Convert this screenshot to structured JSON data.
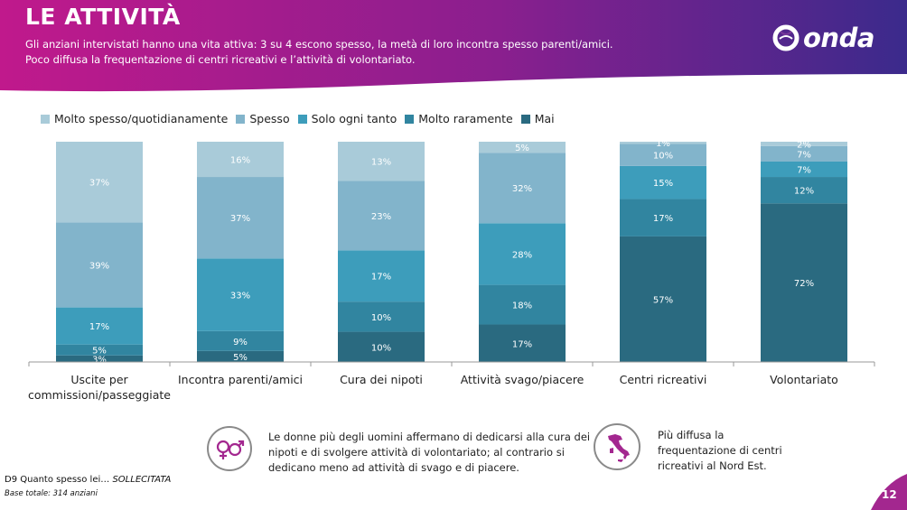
{
  "header": {
    "title": "LE ATTIVITÀ",
    "subtitle_line1": "Gli anziani intervistati hanno una vita attiva: 3 su 4 escono spesso, la metà di loro incontra  spesso parenti/amici.",
    "subtitle_line2": "Poco diffusa la frequentazione di centri ricreativi e l’attività di volontariato.",
    "logo_text": "onda"
  },
  "colors": {
    "header_left": "#c0198c",
    "header_right": "#3b2a8c",
    "molto_spesso": "#a9cbd9",
    "spesso": "#82b4cb",
    "solo_ogni_tanto": "#3d9dbb",
    "molto_raramente": "#3185a0",
    "mai": "#2a6a80"
  },
  "chart_data": {
    "type": "bar",
    "stacked": true,
    "normalized": true,
    "legend_position": "top",
    "categories": [
      "Uscite per commissioni/passeggiate",
      "Incontra parenti/amici",
      "Cura dei nipoti",
      "Attività svago/piacere",
      "Centri ricreativi",
      "Volontariato"
    ],
    "category_lines": [
      [
        "Uscite per",
        "commissioni/passeggiate"
      ],
      [
        "Incontra parenti/amici"
      ],
      [
        "Cura dei nipoti"
      ],
      [
        "Attività svago/piacere"
      ],
      [
        "Centri ricreativi"
      ],
      [
        "Volontariato"
      ]
    ],
    "series": [
      {
        "name": "Mai",
        "color_key": "mai",
        "values": [
          3,
          5,
          10,
          17,
          57,
          72
        ],
        "labels": [
          "3%",
          "5%",
          "10%",
          "17%",
          "57%",
          "72%"
        ]
      },
      {
        "name": "Molto raramente",
        "color_key": "molto_raramente",
        "values": [
          5,
          9,
          10,
          18,
          17,
          12
        ],
        "labels": [
          "5%",
          "9%",
          "10%",
          "18%",
          "17%",
          "12%"
        ]
      },
      {
        "name": "Solo ogni tanto",
        "color_key": "solo_ogni_tanto",
        "values": [
          17,
          33,
          17,
          28,
          15,
          7
        ],
        "labels": [
          "17%",
          "33%",
          "17%",
          "28%",
          "15%",
          "7%"
        ]
      },
      {
        "name": "Spesso",
        "color_key": "spesso",
        "values": [
          39,
          37,
          23,
          32,
          10,
          7
        ],
        "labels": [
          "39%",
          "37%",
          "23%",
          "32%",
          "10%",
          "7%"
        ]
      },
      {
        "name": "Molto spesso/quotidianamente",
        "color_key": "molto_spesso",
        "values": [
          37,
          16,
          13,
          5,
          1,
          2
        ],
        "labels": [
          "37%",
          "16%",
          "13%",
          "5%",
          "1%",
          "2%"
        ]
      }
    ]
  },
  "legend": [
    {
      "label": "Molto spesso/quotidianamente",
      "color_key": "molto_spesso"
    },
    {
      "label": "Spesso",
      "color_key": "spesso"
    },
    {
      "label": "Solo ogni tanto",
      "color_key": "solo_ogni_tanto"
    },
    {
      "label": "Molto raramente",
      "color_key": "molto_raramente"
    },
    {
      "label": "Mai",
      "color_key": "mai"
    }
  ],
  "notes": {
    "gender_line1": "Le donne più degli uomini affermano di dedicarsi alla cura dei",
    "gender_line2": "nipoti e di svolgere attività di volontariato; al contrario si",
    "gender_line3": "dedicano meno ad attività di svago e di piacere.",
    "gender_icon": "gender-symbols-icon",
    "region_line1": "Più diffusa la",
    "region_line2": "frequentazione di centri",
    "region_line3": "ricreativi al Nord Est.",
    "region_icon": "italy-map-icon"
  },
  "footer": {
    "question_prefix": "D9 Quanto spesso lei… ",
    "question_suffix": "SOLLECITATA",
    "base": "Base totale: 314 anziani",
    "page": "12"
  }
}
